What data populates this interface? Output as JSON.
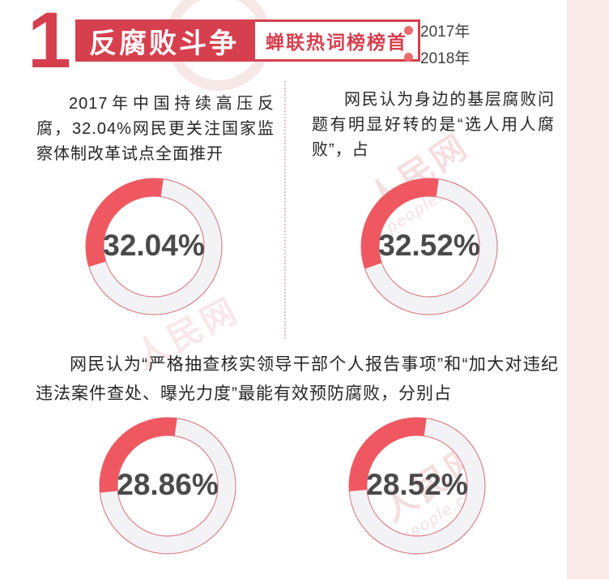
{
  "header": {
    "rank_number": "1",
    "title": "反腐败斗争",
    "subtitle": "蝉联热词榜榜首",
    "legend": [
      {
        "label": "2017年"
      },
      {
        "label": "2018年"
      }
    ]
  },
  "sections": {
    "top_left_text": "2017年中国持续高压反腐，32.04%网民更关注国家监察体制改革试点全面推开",
    "top_right_text": "网民认为身边的基层腐败问题有明显好转的是“选人用人腐败”，占",
    "middle_text": "网民认为“严格抽查核实领导干部个人报告事项”和“加大对违纪违法案件查处、曝光力度”最能有效预防腐败，分别占"
  },
  "watermark": {
    "brand": "人民网",
    "domain": "people.cn"
  },
  "colors": {
    "crimson": "#d6404e",
    "coral": "#ef5861",
    "legend_dot": "#ed6b70",
    "track": "#f3f3f6",
    "ring_outline": "#d9848c",
    "strip_pink": "#f9e9e9",
    "value_label_gray": "#4a4a4a"
  },
  "chart_data": {
    "type": "pie",
    "subtype": "donut-percentage",
    "direction": "counterclockwise",
    "start_angle_deg_from_top": 8,
    "unit": "%",
    "charts": [
      {
        "position": "top-left",
        "value": 32.04,
        "label": "32.04%"
      },
      {
        "position": "top-right",
        "value": 32.52,
        "label": "32.52%"
      },
      {
        "position": "bottom-left",
        "value": 28.86,
        "label": "28.86%"
      },
      {
        "position": "bottom-right",
        "value": 28.52,
        "label": "28.52%"
      }
    ]
  }
}
